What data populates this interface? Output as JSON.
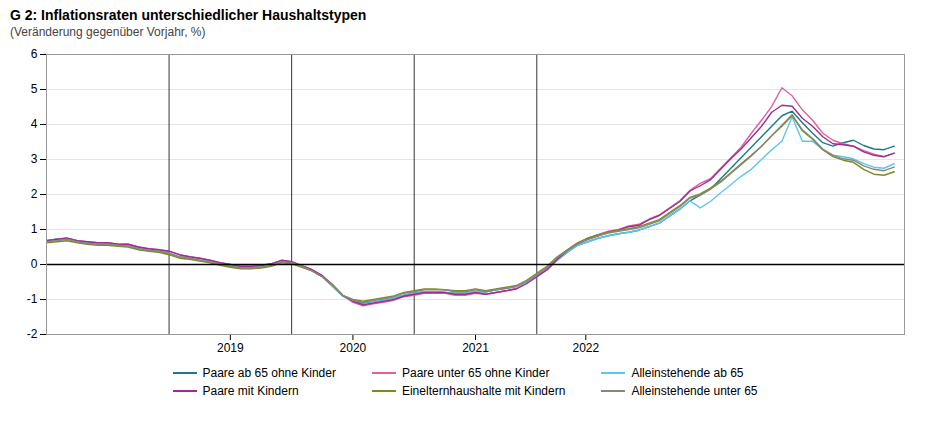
{
  "chart_data": {
    "type": "line",
    "title": "G 2: Inflationsraten unterschiedlicher Haushaltstypen",
    "subtitle": "(Veränderung gegenüber Vorjahr, %)",
    "x": [
      2018,
      2018.0833333333333,
      2018.1666666666667,
      2018.25,
      2018.3333333333333,
      2018.4166666666667,
      2018.5,
      2018.5833333333333,
      2018.6666666666667,
      2018.75,
      2018.8333333333333,
      2018.9166666666667,
      2019,
      2019.0833333333333,
      2019.1666666666667,
      2019.25,
      2019.3333333333333,
      2019.4166666666667,
      2019.5,
      2019.5833333333333,
      2019.6666666666667,
      2019.75,
      2019.8333333333333,
      2019.9166666666667,
      2020,
      2020.0833333333333,
      2020.1666666666667,
      2020.25,
      2020.3333333333333,
      2020.4166666666667,
      2020.5,
      2020.5833333333333,
      2020.6666666666667,
      2020.75,
      2020.8333333333333,
      2020.9166666666667,
      2021,
      2021.0833333333333,
      2021.1666666666667,
      2021.25,
      2021.3333333333333,
      2021.4166666666667,
      2021.5,
      2021.5833333333333,
      2021.6666666666667,
      2021.75,
      2021.8333333333333,
      2021.9166666666667,
      2022,
      2022.0833333333333,
      2022.1666666666667,
      2022.25,
      2022.3333333333333,
      2022.4166666666667,
      2022.5,
      2022.5833333333333,
      2022.6666666666667,
      2022.75,
      2022.8333333333333,
      2022.9166666666667,
      2023,
      2023.0833333333333,
      2023.1666666666667,
      2023.25,
      2023.3333333333333,
      2023.4166666666667,
      2023.5,
      2023.5833333333333,
      2023.6666666666667,
      2023.75,
      2023.8333333333333,
      2023.9166666666667,
      2024,
      2024.0833333333333,
      2024.1666666666667,
      2024.25,
      2024.3333333333333,
      2024.4166666666667,
      2024.5,
      2024.5833333333333,
      2024.6666666666667,
      2024.75,
      2024.8333333333333,
      2024.9166666666667
    ],
    "xlim": [
      2018,
      2025
    ],
    "xticks": [
      {
        "value": 2019.5,
        "label": "2019"
      },
      {
        "value": 2020.5,
        "label": "2020"
      },
      {
        "value": 2021.5,
        "label": "2021"
      },
      {
        "value": 2022.4,
        "label": "2022"
      }
    ],
    "ylim": [
      -2,
      6
    ],
    "yticks": [
      -2,
      -1,
      0,
      1,
      2,
      3,
      4,
      5,
      6
    ],
    "grid": true,
    "legend": "bottom",
    "vlines": [
      2019,
      2020,
      2021,
      2022
    ],
    "hlines": [
      0
    ],
    "series": [
      {
        "name": "Paare ab 65 ohne Kinder",
        "color": "#1a7a8a",
        "values": [
          0.68,
          0.72,
          0.75,
          0.68,
          0.62,
          0.6,
          0.58,
          0.55,
          0.52,
          0.45,
          0.4,
          0.38,
          0.32,
          0.22,
          0.18,
          0.12,
          0.08,
          0.02,
          -0.05,
          -0.1,
          -0.1,
          -0.08,
          -0.03,
          0.08,
          0.05,
          -0.05,
          -0.18,
          -0.35,
          -0.62,
          -0.9,
          -1.05,
          -1.1,
          -1.05,
          -1.0,
          -0.95,
          -0.88,
          -0.82,
          -0.78,
          -0.78,
          -0.8,
          -0.82,
          -0.82,
          -0.78,
          -0.78,
          -0.72,
          -0.68,
          -0.62,
          -0.52,
          -0.35,
          -0.15,
          0.12,
          0.35,
          0.55,
          0.65,
          0.75,
          0.82,
          0.88,
          0.92,
          0.98,
          1.08,
          1.18,
          1.38,
          1.58,
          1.82,
          1.98,
          2.15,
          2.45,
          2.75,
          3.05,
          3.35,
          3.65,
          3.95,
          4.25,
          4.38,
          4.05,
          3.75,
          3.48,
          3.38,
          3.48,
          3.55,
          3.4,
          3.3,
          3.28,
          3.38
        ]
      },
      {
        "name": "Paare unter 65 ohne Kinder",
        "color": "#e060a0",
        "values": [
          0.68,
          0.72,
          0.75,
          0.68,
          0.65,
          0.62,
          0.62,
          0.58,
          0.58,
          0.5,
          0.45,
          0.42,
          0.38,
          0.28,
          0.22,
          0.18,
          0.12,
          0.05,
          0.0,
          -0.05,
          -0.05,
          -0.03,
          0.02,
          0.12,
          0.08,
          -0.03,
          -0.15,
          -0.32,
          -0.58,
          -0.88,
          -1.08,
          -1.18,
          -1.12,
          -1.08,
          -1.02,
          -0.92,
          -0.88,
          -0.82,
          -0.82,
          -0.82,
          -0.88,
          -0.88,
          -0.82,
          -0.85,
          -0.8,
          -0.75,
          -0.68,
          -0.52,
          -0.32,
          -0.12,
          0.18,
          0.42,
          0.62,
          0.75,
          0.85,
          0.95,
          1.0,
          1.1,
          1.15,
          1.3,
          1.42,
          1.62,
          1.82,
          2.12,
          2.32,
          2.45,
          2.75,
          3.05,
          3.35,
          3.75,
          4.12,
          4.52,
          5.05,
          4.82,
          4.42,
          4.12,
          3.75,
          3.55,
          3.45,
          3.38,
          3.25,
          3.15,
          3.08,
          3.18
        ]
      },
      {
        "name": "Alleinstehende ab 65",
        "color": "#5ac8e8",
        "values": [
          0.68,
          0.72,
          0.75,
          0.68,
          0.62,
          0.6,
          0.58,
          0.55,
          0.52,
          0.45,
          0.4,
          0.38,
          0.32,
          0.22,
          0.18,
          0.12,
          0.08,
          0.02,
          -0.05,
          -0.1,
          -0.1,
          -0.08,
          -0.03,
          0.08,
          0.05,
          -0.05,
          -0.18,
          -0.35,
          -0.62,
          -0.9,
          -1.05,
          -1.08,
          -1.05,
          -1.0,
          -0.95,
          -0.88,
          -0.82,
          -0.78,
          -0.78,
          -0.8,
          -0.82,
          -0.82,
          -0.78,
          -0.78,
          -0.72,
          -0.68,
          -0.62,
          -0.52,
          -0.35,
          -0.15,
          0.12,
          0.35,
          0.55,
          0.65,
          0.75,
          0.82,
          0.88,
          0.92,
          0.98,
          1.08,
          1.18,
          1.38,
          1.58,
          1.82,
          1.62,
          1.8,
          2.05,
          2.28,
          2.52,
          2.72,
          3.0,
          3.28,
          3.52,
          4.22,
          3.52,
          3.52,
          3.28,
          3.12,
          3.08,
          3.02,
          2.88,
          2.78,
          2.75,
          2.88
        ]
      },
      {
        "name": "Paare mit Kindern",
        "color": "#9b2e90",
        "values": [
          0.68,
          0.72,
          0.75,
          0.68,
          0.65,
          0.62,
          0.62,
          0.58,
          0.58,
          0.5,
          0.45,
          0.42,
          0.38,
          0.28,
          0.22,
          0.18,
          0.12,
          0.05,
          0.0,
          -0.05,
          -0.05,
          -0.03,
          0.02,
          0.12,
          0.08,
          -0.03,
          -0.15,
          -0.32,
          -0.58,
          -0.88,
          -1.05,
          -1.15,
          -1.1,
          -1.05,
          -1.0,
          -0.9,
          -0.85,
          -0.8,
          -0.8,
          -0.8,
          -0.85,
          -0.85,
          -0.8,
          -0.85,
          -0.8,
          -0.75,
          -0.7,
          -0.55,
          -0.35,
          -0.15,
          0.15,
          0.4,
          0.6,
          0.72,
          0.82,
          0.92,
          0.98,
          1.08,
          1.12,
          1.28,
          1.4,
          1.6,
          1.8,
          2.1,
          2.25,
          2.42,
          2.72,
          3.02,
          3.3,
          3.62,
          3.95,
          4.35,
          4.55,
          4.52,
          4.18,
          3.95,
          3.65,
          3.45,
          3.42,
          3.38,
          3.22,
          3.12,
          3.08,
          3.18
        ]
      },
      {
        "name": "Einelternhaushalte mit Kindern",
        "color": "#7a8c20",
        "values": [
          0.62,
          0.65,
          0.68,
          0.62,
          0.58,
          0.55,
          0.55,
          0.52,
          0.5,
          0.42,
          0.38,
          0.35,
          0.28,
          0.18,
          0.15,
          0.1,
          0.05,
          -0.02,
          -0.08,
          -0.12,
          -0.12,
          -0.1,
          -0.05,
          0.05,
          0.02,
          -0.08,
          -0.18,
          -0.35,
          -0.58,
          -0.88,
          -1.0,
          -1.05,
          -1.0,
          -0.95,
          -0.9,
          -0.8,
          -0.75,
          -0.7,
          -0.7,
          -0.72,
          -0.75,
          -0.75,
          -0.7,
          -0.75,
          -0.7,
          -0.65,
          -0.6,
          -0.45,
          -0.25,
          -0.05,
          0.22,
          0.42,
          0.62,
          0.75,
          0.85,
          0.92,
          0.98,
          1.02,
          1.08,
          1.18,
          1.28,
          1.48,
          1.68,
          1.92,
          2.02,
          2.18,
          2.38,
          2.62,
          2.88,
          3.12,
          3.38,
          3.68,
          3.98,
          4.28,
          3.82,
          3.58,
          3.28,
          3.08,
          2.98,
          2.92,
          2.72,
          2.58,
          2.55,
          2.65
        ]
      },
      {
        "name": "Alleinstehende unter 65",
        "color": "#888878",
        "values": [
          0.65,
          0.68,
          0.72,
          0.65,
          0.6,
          0.58,
          0.58,
          0.55,
          0.52,
          0.45,
          0.4,
          0.38,
          0.32,
          0.22,
          0.18,
          0.12,
          0.08,
          0.02,
          -0.05,
          -0.1,
          -0.1,
          -0.08,
          -0.03,
          0.08,
          0.05,
          -0.05,
          -0.18,
          -0.35,
          -0.6,
          -0.88,
          -1.02,
          -1.08,
          -1.02,
          -0.98,
          -0.92,
          -0.82,
          -0.78,
          -0.72,
          -0.72,
          -0.72,
          -0.78,
          -0.78,
          -0.72,
          -0.78,
          -0.72,
          -0.68,
          -0.62,
          -0.48,
          -0.28,
          -0.08,
          0.2,
          0.4,
          0.6,
          0.72,
          0.82,
          0.9,
          0.95,
          1.0,
          1.05,
          1.15,
          1.25,
          1.45,
          1.65,
          1.9,
          1.98,
          2.15,
          2.35,
          2.6,
          2.85,
          3.1,
          3.38,
          3.68,
          3.95,
          4.25,
          3.85,
          3.6,
          3.3,
          3.12,
          3.02,
          2.98,
          2.82,
          2.72,
          2.68,
          2.78
        ]
      }
    ]
  }
}
